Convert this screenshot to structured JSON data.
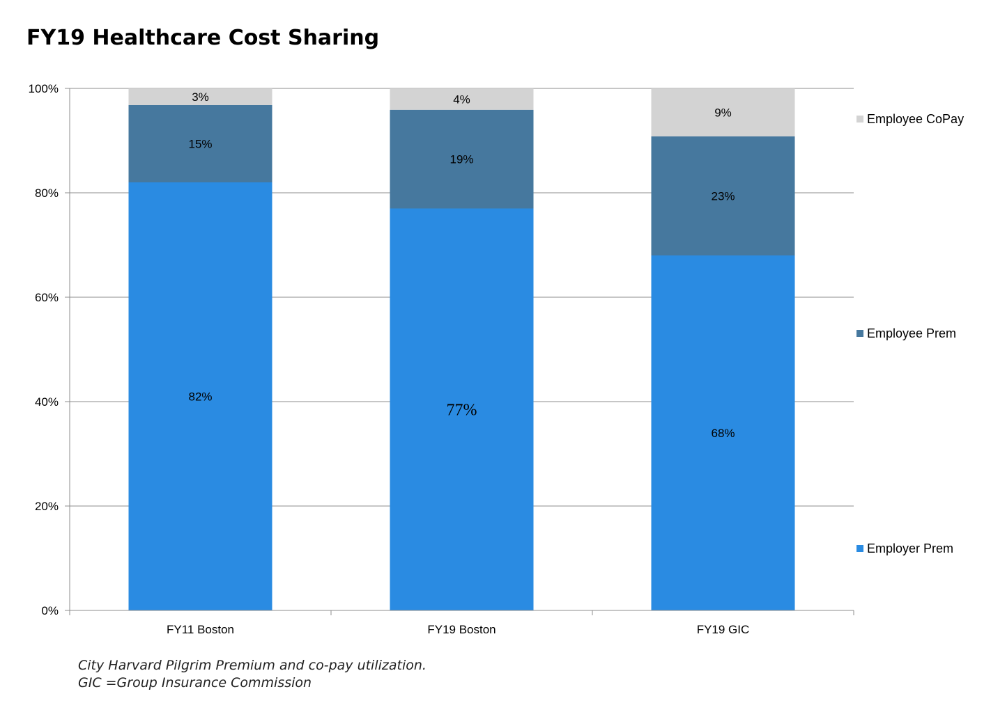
{
  "chart_data": {
    "type": "bar",
    "stacked": true,
    "title": "FY19 Healthcare Cost Sharing",
    "categories": [
      "FY11 Boston",
      "FY19 Boston",
      "FY19 GIC"
    ],
    "series": [
      {
        "name": "Employer Prem",
        "values": [
          82,
          77,
          68
        ],
        "labels": [
          "82%",
          "77%",
          "68%"
        ],
        "color": "#2a8be2"
      },
      {
        "name": "Employee Prem",
        "values": [
          14.8,
          18.9,
          22.8
        ],
        "labels": [
          "15%",
          "19%",
          "23%"
        ],
        "color": "#46789e"
      },
      {
        "name": "Employee CoPay",
        "values": [
          3.2,
          4.1,
          9.2
        ],
        "labels": [
          "3%",
          "4%",
          "9%"
        ],
        "color": "#d3d3d3"
      }
    ],
    "ylim": [
      0,
      100
    ],
    "yticks": [
      "0%",
      "20%",
      "40%",
      "60%",
      "80%",
      "100%"
    ],
    "grid": true,
    "legend_position": "right",
    "legend_order": [
      "Employee CoPay",
      "Employee Prem",
      "Employer Prem"
    ]
  },
  "footnote": {
    "line1": "City Harvard Pilgrim Premium and co-pay utilization.",
    "line2": "GIC =Group Insurance Commission"
  }
}
